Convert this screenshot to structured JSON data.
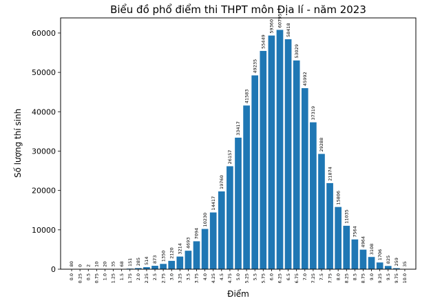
{
  "chart_data": {
    "type": "bar",
    "title": "Biểu đồ phổ điểm thi THPT môn Địa lí - năm 2023",
    "xlabel": "Điểm",
    "ylabel": "Số lượng thí sinh",
    "categories": [
      "0.0",
      "0.25",
      "0.5",
      "0.75",
      "1.0",
      "1.25",
      "1.5",
      "1.75",
      "2.0",
      "2.25",
      "2.5",
      "2.75",
      "3.0",
      "3.25",
      "3.5",
      "3.75",
      "4.0",
      "4.25",
      "4.5",
      "4.75",
      "5.0",
      "5.25",
      "5.5",
      "5.75",
      "6.0",
      "6.25",
      "6.5",
      "6.75",
      "7.0",
      "7.25",
      "7.5",
      "7.75",
      "8.0",
      "8.25",
      "8.5",
      "8.75",
      "9.0",
      "9.25",
      "9.5",
      "9.75",
      "10.0"
    ],
    "values": [
      80,
      0,
      2,
      10,
      20,
      35,
      68,
      151,
      285,
      514,
      873,
      1350,
      2120,
      3214,
      4693,
      7094,
      10230,
      14417,
      19760,
      26157,
      33417,
      41583,
      49235,
      55449,
      59360,
      60795,
      58418,
      53029,
      45992,
      37319,
      29288,
      21874,
      15806,
      11035,
      7564,
      4964,
      3108,
      1706,
      825,
      259,
      35
    ],
    "yticks": [
      0,
      10000,
      20000,
      30000,
      40000,
      50000,
      60000
    ],
    "ylim": [
      0,
      63838
    ],
    "data_labels": true,
    "grid": false,
    "colors": {
      "bar": "#1f77b4"
    }
  }
}
